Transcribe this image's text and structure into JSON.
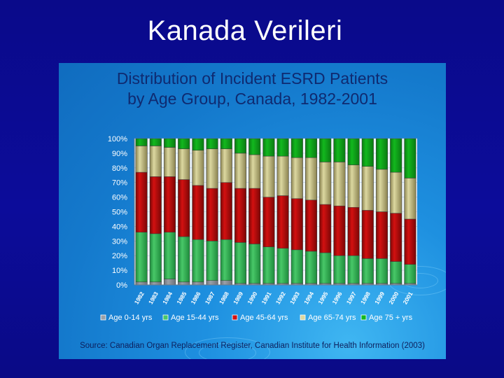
{
  "slide": {
    "title": "Kanada Verileri"
  },
  "source_note": "Source: Canadian Organ Replacement Register, Canadian Institute for Health Information (2003)",
  "colors": {
    "age_0_14": "#9aa0a8",
    "age_15_44": "#48c868",
    "age_45_64": "#d31010",
    "age_65_74": "#dcd8a0",
    "age_75_plus": "#12b81e"
  },
  "chart_data": {
    "type": "bar",
    "stacked": true,
    "percent": true,
    "title": "Distribution of Incident ESRD Patients by Age Group, Canada, 1982-2001",
    "title_lines": [
      "Distribution of Incident ESRD Patients",
      "by Age Group, Canada, 1982-2001"
    ],
    "xlabel": "",
    "ylabel": "",
    "ylim": [
      0,
      100
    ],
    "y_ticks": [
      "0%",
      "10%",
      "20%",
      "30%",
      "40%",
      "50%",
      "60%",
      "70%",
      "80%",
      "90%",
      "100%"
    ],
    "grid": true,
    "legend_position": "bottom",
    "categories": [
      "1982",
      "1983",
      "1984",
      "1985",
      "1986",
      "1987",
      "1988",
      "1989",
      "1990",
      "1991",
      "1992",
      "1993",
      "1994",
      "1995",
      "1996",
      "1997",
      "1998",
      "1999",
      "2000",
      "2001"
    ],
    "series": [
      {
        "name": "Age 0-14 yrs",
        "values": [
          2,
          2,
          4,
          2,
          2,
          3,
          3,
          1,
          1,
          1,
          1,
          1,
          1,
          1,
          1,
          1,
          1,
          1,
          1,
          1
        ]
      },
      {
        "name": "Age 15-44 yrs",
        "values": [
          34,
          33,
          32,
          31,
          29,
          27,
          28,
          28,
          27,
          25,
          24,
          23,
          22,
          21,
          19,
          19,
          17,
          17,
          15,
          13
        ]
      },
      {
        "name": "Age 45-64 yrs",
        "values": [
          41,
          39,
          38,
          39,
          37,
          36,
          39,
          37,
          38,
          34,
          36,
          35,
          35,
          33,
          34,
          33,
          33,
          32,
          33,
          31
        ]
      },
      {
        "name": "Age 65-74 yrs",
        "values": [
          18,
          21,
          20,
          21,
          24,
          27,
          23,
          24,
          23,
          28,
          27,
          28,
          29,
          29,
          30,
          29,
          30,
          29,
          28,
          28
        ]
      },
      {
        "name": "Age 75 + yrs",
        "values": [
          5,
          5,
          6,
          7,
          8,
          7,
          7,
          10,
          11,
          12,
          12,
          13,
          13,
          16,
          16,
          18,
          19,
          21,
          23,
          27
        ]
      }
    ]
  }
}
